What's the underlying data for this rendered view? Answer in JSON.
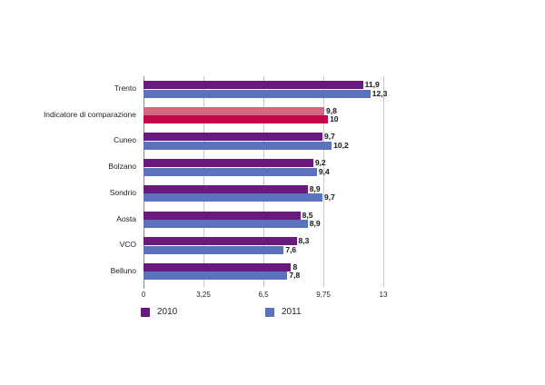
{
  "chart_data": {
    "type": "bar",
    "orientation": "horizontal",
    "title": "",
    "xlabel": "",
    "ylabel": "",
    "categories": [
      "Trento",
      "Indicatore di comparazione",
      "Cuneo",
      "Bolzano",
      "Sondrio",
      "Aosta",
      "VCO",
      "Belluno"
    ],
    "series": [
      {
        "name": "2010",
        "color": "#6a1a7e",
        "values": [
          11.9,
          9.8,
          9.7,
          9.2,
          8.9,
          8.5,
          8.3,
          8
        ]
      },
      {
        "name": "2011",
        "color": "#5b73bd",
        "values": [
          12.3,
          10,
          10.2,
          9.4,
          9.7,
          8.9,
          7.6,
          7.8
        ]
      }
    ],
    "highlight": {
      "category": "Indicatore di comparazione",
      "colors": [
        "#d06a7e",
        "#c2064a"
      ]
    },
    "value_labels": [
      [
        "11,9",
        "12,3"
      ],
      [
        "9,8",
        "10"
      ],
      [
        "9,7",
        "10,2"
      ],
      [
        "9,2",
        "9,4"
      ],
      [
        "8,9",
        "9,7"
      ],
      [
        "8,5",
        "8,9"
      ],
      [
        "8,3",
        "7,6"
      ],
      [
        "8",
        "7,8"
      ]
    ],
    "xlim": [
      0,
      13
    ],
    "x_ticks": [
      "0",
      "3,25",
      "6,5",
      "9,75",
      "13"
    ],
    "grid": true,
    "legend_position": "bottom"
  },
  "legend": [
    {
      "label": "2010",
      "color": "#6a1a7e"
    },
    {
      "label": "2011",
      "color": "#5b73bd"
    }
  ]
}
